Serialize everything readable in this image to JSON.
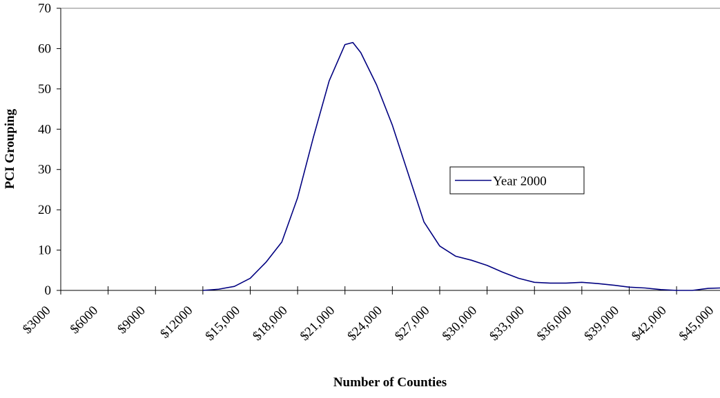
{
  "chart_data": {
    "type": "line",
    "x_label": "Number of Counties",
    "y_label": "PCI Grouping",
    "x": [
      12000,
      13000,
      14000,
      15000,
      16000,
      17000,
      18000,
      19000,
      20000,
      21000,
      21500,
      22000,
      23000,
      24000,
      25000,
      26000,
      27000,
      28000,
      29000,
      30000,
      31000,
      32000,
      33000,
      34000,
      35000,
      36000,
      37000,
      38000,
      39000,
      40000,
      41000,
      42000,
      43000,
      44000,
      44750
    ],
    "series": [
      {
        "name": "Year 2000",
        "color": "#000080",
        "values": [
          0,
          0.3,
          1,
          3,
          7,
          12,
          23,
          38,
          52,
          61,
          61.5,
          59,
          51,
          41,
          29,
          17,
          11,
          8.5,
          7.5,
          6.2,
          4.5,
          3,
          2,
          1.8,
          1.8,
          2,
          1.7,
          1.3,
          0.8,
          0.6,
          0.2,
          0,
          0,
          0.5,
          0.6
        ]
      }
    ],
    "xlim": [
      3000,
      44750
    ],
    "ylim": [
      0,
      70
    ],
    "xticks": [
      {
        "value": 3000,
        "label": "$3000"
      },
      {
        "value": 6000,
        "label": "$6000"
      },
      {
        "value": 9000,
        "label": "$9000"
      },
      {
        "value": 12000,
        "label": "$12000"
      },
      {
        "value": 15000,
        "label": "$15,000"
      },
      {
        "value": 18000,
        "label": "$18,000"
      },
      {
        "value": 21000,
        "label": "$21,000"
      },
      {
        "value": 24000,
        "label": "$24,000"
      },
      {
        "value": 27000,
        "label": "$27,000"
      },
      {
        "value": 30000,
        "label": "$30,000"
      },
      {
        "value": 33000,
        "label": "$33,000"
      },
      {
        "value": 36000,
        "label": "$36,000"
      },
      {
        "value": 39000,
        "label": "$39,000"
      },
      {
        "value": 42000,
        "label": "$42,000"
      },
      {
        "value": 45000,
        "label": "$45,000"
      }
    ],
    "yticks": [
      0,
      10,
      20,
      30,
      40,
      50,
      60,
      70
    ],
    "legend": "right",
    "grid": false
  }
}
